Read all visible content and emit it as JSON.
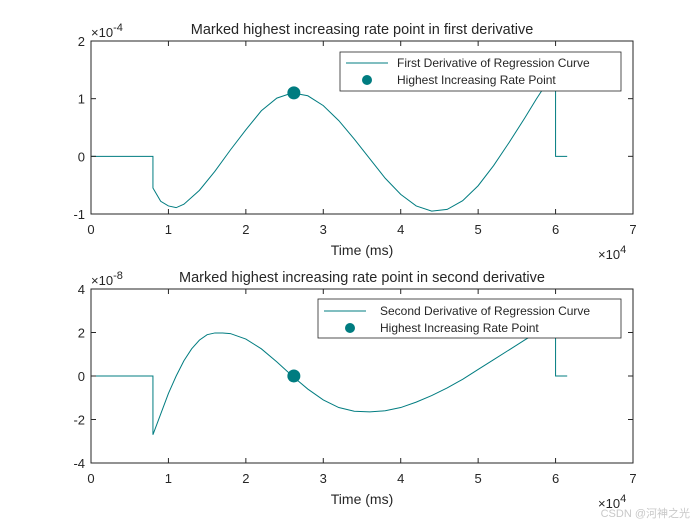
{
  "chart_data": [
    {
      "type": "line",
      "title": "Marked highest increasing rate point in first derivative",
      "xlabel": "Time (ms)",
      "ylabel": "",
      "xlim": [
        0,
        70000
      ],
      "ylim": [
        -0.0001,
        0.0002
      ],
      "xticks": [
        "0",
        "1",
        "2",
        "3",
        "4",
        "5",
        "6",
        "7"
      ],
      "yticks": [
        "-1",
        "0",
        "1",
        "2"
      ],
      "x_exponent": "×10^4",
      "x_exponent_base": "×10",
      "x_exponent_power": "4",
      "y_exponent": "×10^-4",
      "y_exponent_base": "×10",
      "y_exponent_power": "-4",
      "legend": [
        "First Derivative of Regression Curve",
        "Highest Increasing Rate Point"
      ],
      "legend_position": "top-right",
      "grid": false,
      "series": [
        {
          "name": "First Derivative of Regression Curve",
          "color": "#007c80",
          "x": [
            0,
            8000,
            8000,
            9000,
            10000,
            11000,
            12000,
            14000,
            16000,
            18000,
            20000,
            22000,
            24000,
            26000,
            28000,
            30000,
            32000,
            34000,
            36000,
            38000,
            40000,
            42000,
            44000,
            46000,
            48000,
            50000,
            52000,
            54000,
            56000,
            57500,
            59000,
            60000,
            60000,
            61500
          ],
          "y": [
            0,
            0,
            -5.5e-05,
            -7.8e-05,
            -8.6e-05,
            -8.9e-05,
            -8.3e-05,
            -5.9e-05,
            -2.6e-05,
            1.1e-05,
            4.6e-05,
            7.9e-05,
            0.000101,
            0.00011,
            0.000105,
            8.8e-05,
            6.2e-05,
            3e-05,
            -4e-06,
            -3.8e-05,
            -6.6e-05,
            -8.6e-05,
            -9.5e-05,
            -9.2e-05,
            -7.7e-05,
            -5.1e-05,
            -1.6e-05,
            2.4e-05,
            6.6e-05,
            9.9e-05,
            0.00013,
            0.000145,
            0,
            0
          ]
        },
        {
          "name": "Highest Increasing Rate Point",
          "type": "scatter",
          "color": "#007c80",
          "x": [
            26200
          ],
          "y": [
            0.00011
          ]
        }
      ]
    },
    {
      "type": "line",
      "title": "Marked highest increasing rate point in second derivative",
      "xlabel": "Time (ms)",
      "ylabel": "",
      "xlim": [
        0,
        70000
      ],
      "ylim": [
        -4e-08,
        4e-08
      ],
      "xticks": [
        "0",
        "1",
        "2",
        "3",
        "4",
        "5",
        "6",
        "7"
      ],
      "yticks": [
        "-4",
        "-2",
        "0",
        "2",
        "4"
      ],
      "x_exponent": "×10^4",
      "x_exponent_base": "×10",
      "x_exponent_power": "4",
      "y_exponent": "×10^-8",
      "y_exponent_base": "×10",
      "y_exponent_power": "-8",
      "legend": [
        "Second Derivative of Regression Curve",
        "Highest Increasing Rate Point"
      ],
      "legend_position": "top-right",
      "grid": false,
      "series": [
        {
          "name": "Second Derivative of Regression Curve",
          "color": "#007c80",
          "x": [
            0,
            8000,
            8000,
            9000,
            10000,
            11000,
            12000,
            13000,
            14000,
            15000,
            16000,
            17000,
            18000,
            20000,
            22000,
            24000,
            26000,
            28000,
            30000,
            32000,
            34000,
            36000,
            38000,
            40000,
            42000,
            44000,
            46000,
            48000,
            50000,
            52000,
            54000,
            56000,
            58000,
            60000,
            60000,
            61500
          ],
          "y": [
            0,
            0,
            -2.7e-08,
            -1.75e-08,
            -8e-09,
            0,
            7e-09,
            1.25e-08,
            1.65e-08,
            1.9e-08,
            1.98e-08,
            1.98e-08,
            1.95e-08,
            1.7e-08,
            1.25e-08,
            6.5e-09,
            0,
            -6e-09,
            -1.1e-08,
            -1.45e-08,
            -1.62e-08,
            -1.65e-08,
            -1.6e-08,
            -1.45e-08,
            -1.2e-08,
            -9e-09,
            -5.5e-09,
            -1.5e-09,
            3e-09,
            7.5e-09,
            1.2e-08,
            1.65e-08,
            2.1e-08,
            2.4e-08,
            0,
            0
          ]
        },
        {
          "name": "Highest Increasing Rate Point",
          "type": "scatter",
          "color": "#007c80",
          "x": [
            26200
          ],
          "y": [
            0
          ]
        }
      ]
    }
  ],
  "watermark": "CSDN @河神之光"
}
